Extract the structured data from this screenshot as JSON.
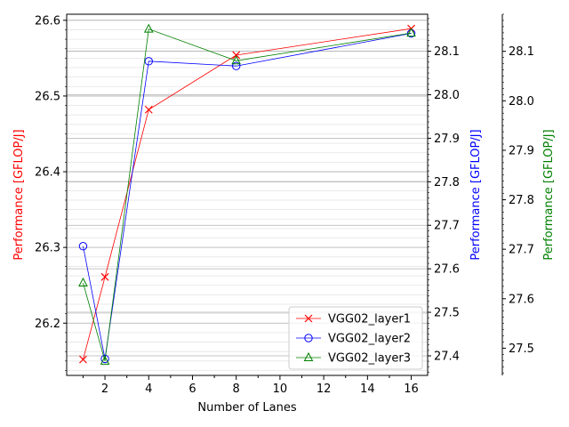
{
  "chart_data": {
    "type": "line",
    "title": "",
    "xlabel": "Number of Lanes",
    "xlim": [
      0.25,
      16.75
    ],
    "x_major_ticks": [
      2,
      4,
      6,
      8,
      10,
      12,
      14,
      16
    ],
    "x_tick_labels": [
      "2",
      "4",
      "6",
      "8",
      "10",
      "12",
      "14",
      "16"
    ],
    "x_minor_ticks": [
      1,
      3,
      5,
      7,
      9,
      11,
      13,
      15
    ],
    "grid": true,
    "legend_position": "lower-right",
    "axes": [
      {
        "id": "left",
        "label": "Performance [GFLOP/J]",
        "color": "#ff0000",
        "ylim": [
          26.131,
          26.608
        ],
        "ticks": [
          26.2,
          26.3,
          26.4,
          26.5,
          26.6
        ],
        "tick_labels": [
          "26.2",
          "26.3",
          "26.4",
          "26.5",
          "26.6"
        ]
      },
      {
        "id": "right1",
        "label": "Performance [GFLOP/J]",
        "color": "#0000ff",
        "ylim": [
          27.355,
          28.185
        ],
        "ticks": [
          27.4,
          27.5,
          27.6,
          27.7,
          27.8,
          27.9,
          28.0,
          28.1
        ],
        "tick_labels": [
          "27.4",
          "27.5",
          "27.6",
          "27.7",
          "27.8",
          "27.9",
          "28.0",
          "28.1"
        ]
      },
      {
        "id": "right2",
        "label": "Performance [GFLOP/J]",
        "color": "#008000",
        "ylim": [
          27.445,
          28.175
        ],
        "ticks": [
          27.5,
          27.6,
          27.7,
          27.8,
          27.9,
          28.0,
          28.1
        ],
        "tick_labels": [
          "27.5",
          "27.6",
          "27.7",
          "27.8",
          "27.9",
          "28.0",
          "28.1"
        ]
      }
    ],
    "x": [
      1,
      2,
      4,
      8,
      16
    ],
    "series": [
      {
        "name": "VGG02_layer1",
        "axis": "left",
        "color": "#ff0000",
        "marker": "x",
        "values": [
          26.152,
          26.261,
          26.482,
          26.554,
          26.589
        ]
      },
      {
        "name": "VGG02_layer2",
        "axis": "right1",
        "color": "#0000ff",
        "marker": "circle",
        "values": [
          27.652,
          27.393,
          28.077,
          28.066,
          28.141
        ]
      },
      {
        "name": "VGG02_layer3",
        "axis": "right2",
        "color": "#008000",
        "marker": "triangle",
        "values": [
          27.632,
          27.474,
          28.145,
          28.081,
          28.137
        ]
      }
    ]
  }
}
